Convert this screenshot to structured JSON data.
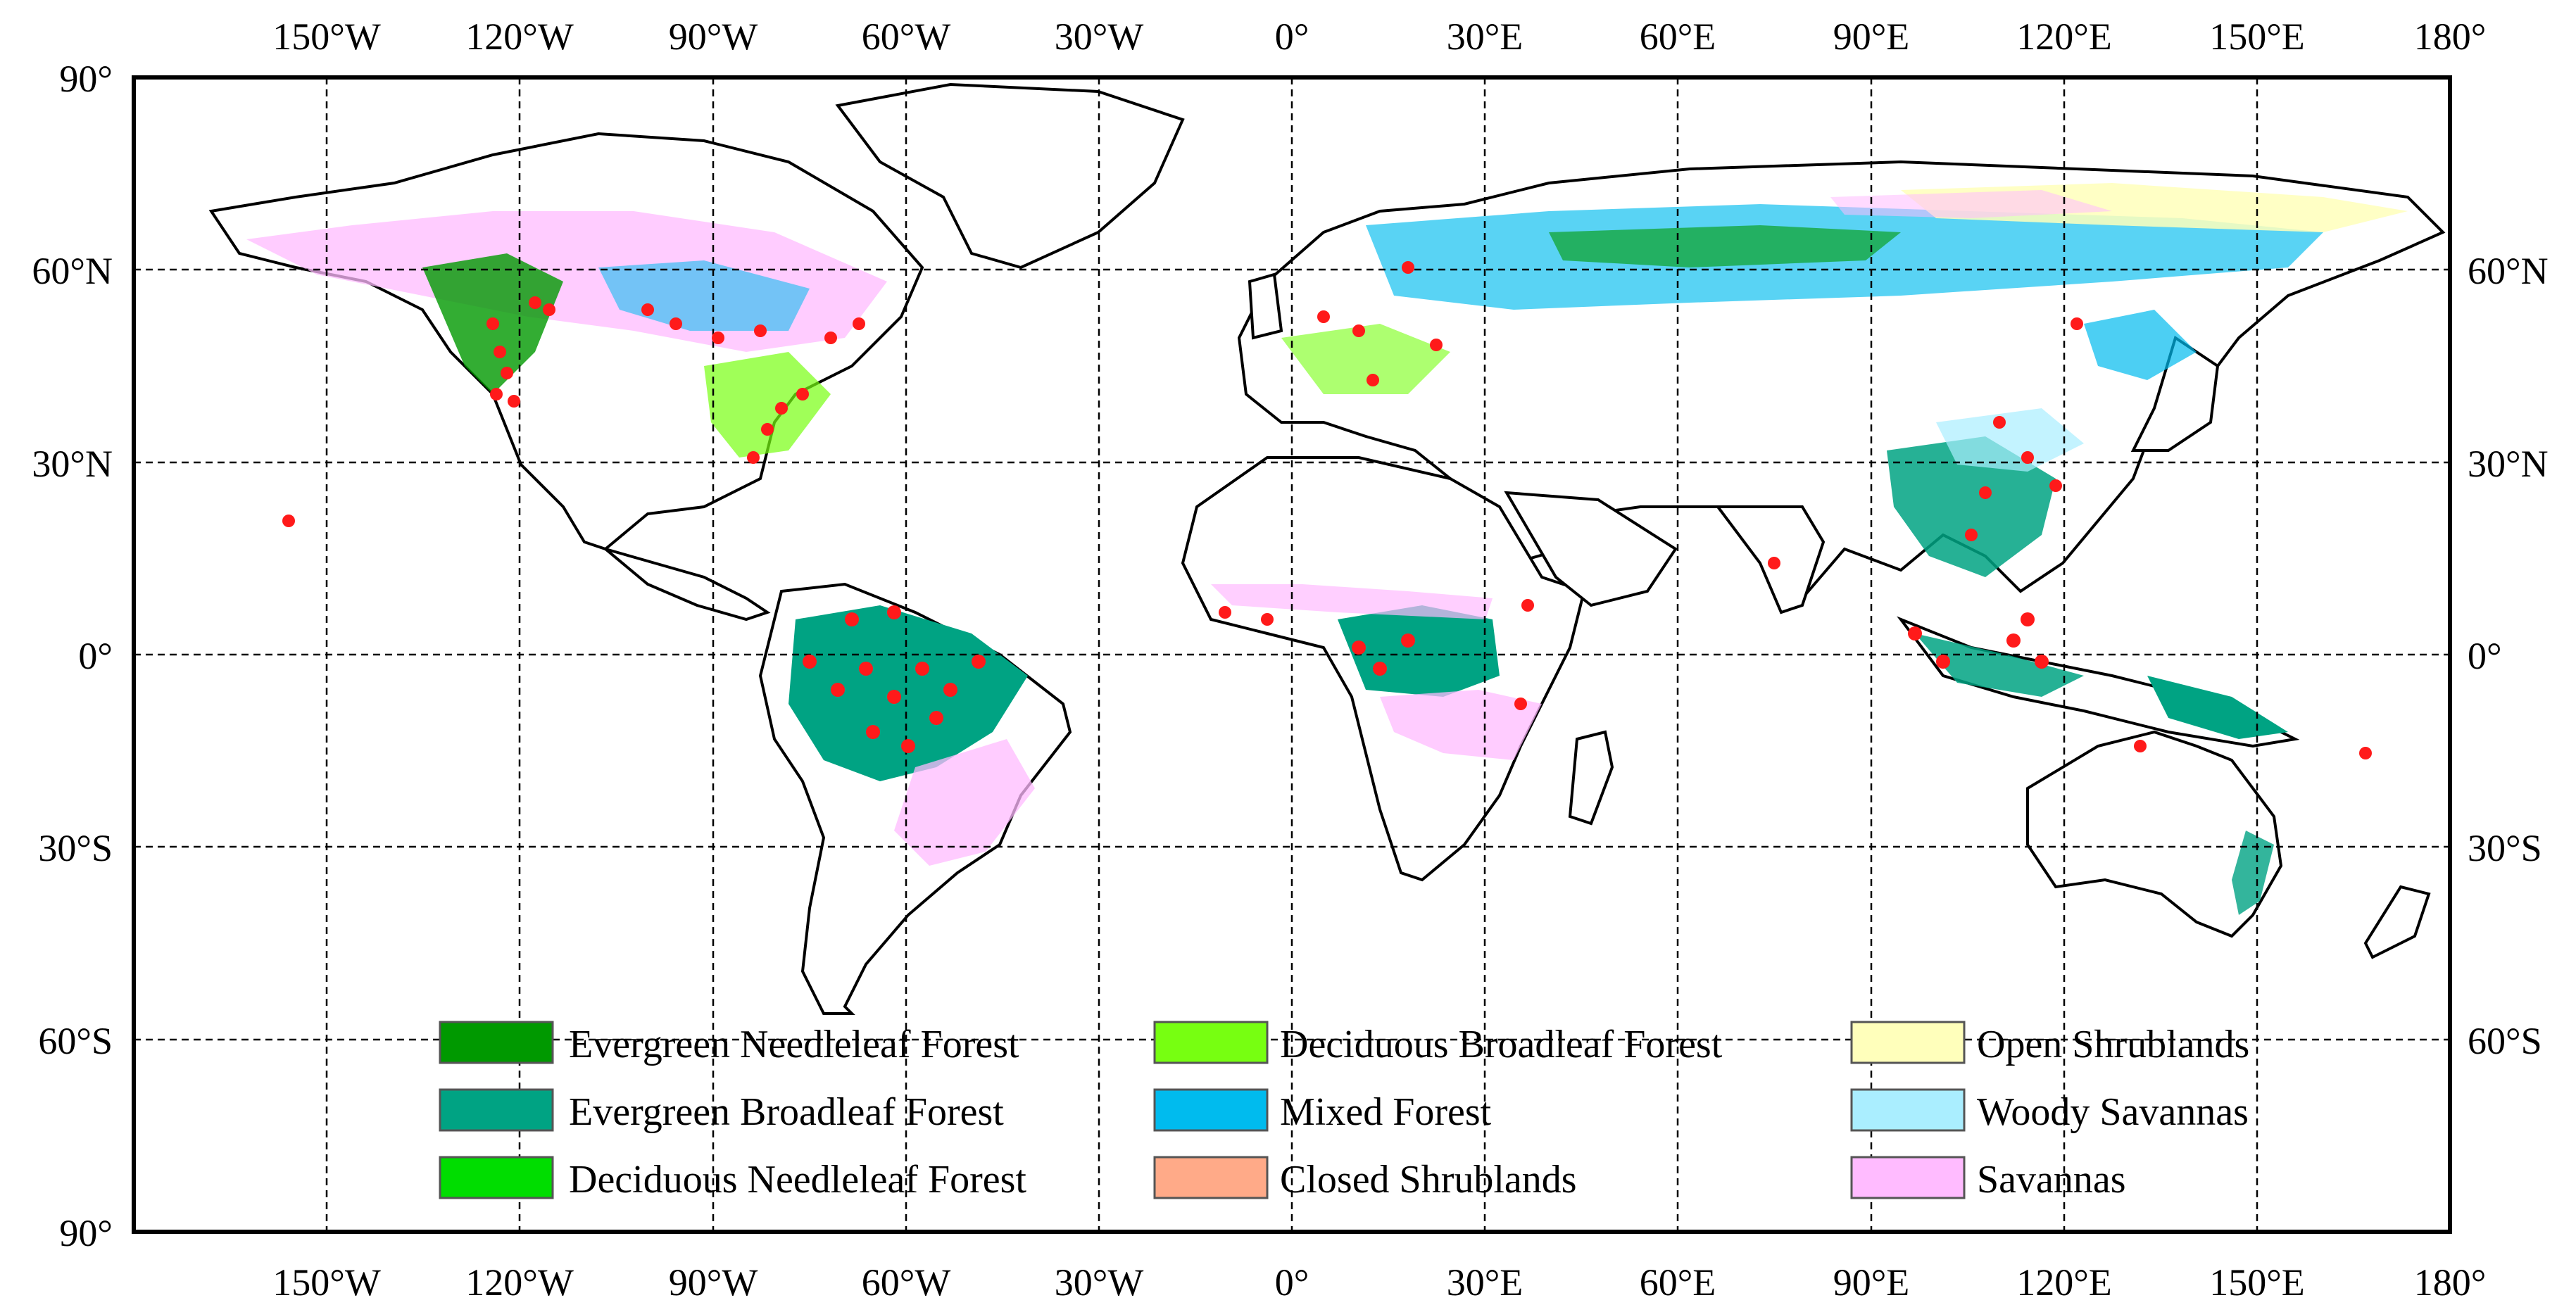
{
  "map": {
    "top_ticks": [
      "150°W",
      "120°W",
      "90°W",
      "60°W",
      "30°W",
      "0°",
      "30°E",
      "60°E",
      "90°E",
      "120°E",
      "150°E",
      "180°"
    ],
    "bottom_ticks": [
      "150°W",
      "120°W",
      "90°W",
      "60°W",
      "30°W",
      "0°",
      "30°E",
      "60°E",
      "90°E",
      "120°E",
      "150°E",
      "180°"
    ],
    "left_ticks": [
      "90°",
      "60°N",
      "30°N",
      "0°",
      "30°S",
      "60°S",
      "90°"
    ],
    "right_ticks": [
      "60°N",
      "30°N",
      "0°",
      "30°S",
      "60°S"
    ],
    "extent": {
      "lon": [
        -180,
        180
      ],
      "lat": [
        -90,
        90
      ]
    },
    "gridlines": "dashed",
    "site_color": "#ff1a1a",
    "legend": [
      {
        "label": "Evergreen Needleleaf Forest",
        "color": "#009900"
      },
      {
        "label": "Evergreen Broadleaf Forest",
        "color": "#00a383"
      },
      {
        "label": "Deciduous Needleleaf Forest",
        "color": "#00dd00"
      },
      {
        "label": "Deciduous Broadleaf Forest",
        "color": "#77ff11"
      },
      {
        "label": "Mixed Forest",
        "color": "#00bbee"
      },
      {
        "label": "Closed Shrublands",
        "color": "#ffaa88"
      },
      {
        "label": "Open Shrublands",
        "color": "#ffffbb"
      },
      {
        "label": "Woody Savannas",
        "color": "#aaeeff"
      },
      {
        "label": "Savannas",
        "color": "#ffbbff"
      }
    ]
  }
}
